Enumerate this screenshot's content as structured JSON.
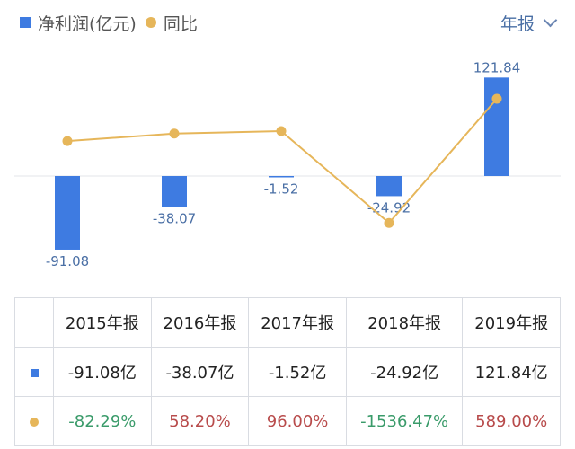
{
  "legend": {
    "bar_label": "净利润(亿元)",
    "line_label": "同比"
  },
  "period_selector": {
    "label": "年报"
  },
  "colors": {
    "bar": "#3e7be1",
    "line": "#e6b65a",
    "positive": "#b84b4b",
    "negative": "#3a9b6a"
  },
  "chart_data": {
    "type": "bar",
    "categories": [
      "2015年报",
      "2016年报",
      "2017年报",
      "2018年报",
      "2019年报"
    ],
    "series": [
      {
        "name": "净利润(亿元)",
        "type": "bar",
        "values": [
          -91.08,
          -38.07,
          -1.52,
          -24.92,
          121.84
        ],
        "data_labels": [
          "-91.08",
          "-38.07",
          "-1.52",
          "-24.92",
          "121.84"
        ]
      },
      {
        "name": "同比",
        "type": "line",
        "values": [
          -82.29,
          58.2,
          96.0,
          -1536.47,
          589.0
        ]
      }
    ],
    "grid": false,
    "legend_position": "top-left"
  },
  "table": {
    "header": [
      "2015年报",
      "2016年报",
      "2017年报",
      "2018年报",
      "2019年报"
    ],
    "profit_row": [
      "-91.08亿",
      "-38.07亿",
      "-1.52亿",
      "-24.92亿",
      "121.84亿"
    ],
    "yoy_row": [
      "-82.29%",
      "58.20%",
      "96.00%",
      "-1536.47%",
      "589.00%"
    ],
    "yoy_sign": [
      "neg",
      "pos",
      "pos",
      "neg",
      "pos"
    ]
  }
}
